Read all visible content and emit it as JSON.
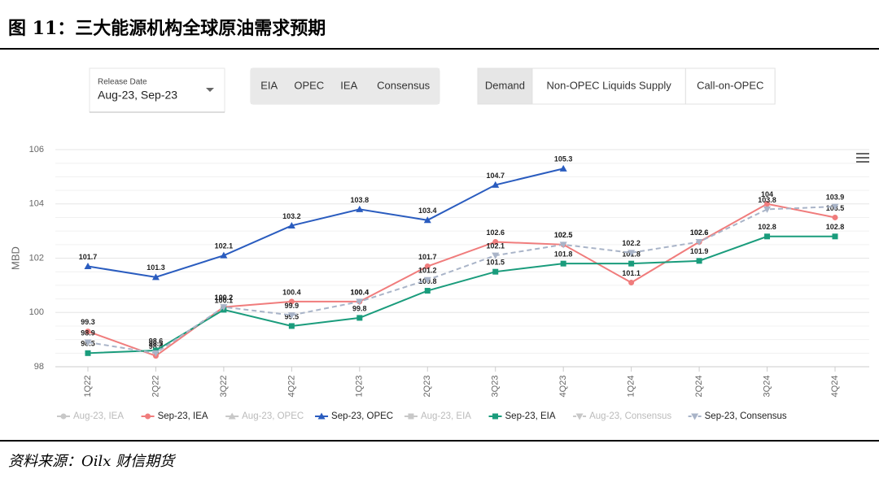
{
  "header": {
    "title": "图 11：三大能源机构全球原油需求预期"
  },
  "controls": {
    "release_date_label": "Release Date",
    "release_date_value": "Aug-23, Sep-23",
    "agencies": [
      "EIA",
      "OPEC",
      "IEA",
      "Consensus"
    ],
    "metrics": [
      "Demand",
      "Non-OPEC Liquids Supply",
      "Call-on-OPEC"
    ]
  },
  "chart_data": {
    "type": "line",
    "ylabel": "MBD",
    "categories": [
      "1Q22",
      "2Q22",
      "3Q22",
      "4Q22",
      "1Q23",
      "2Q23",
      "3Q23",
      "4Q23",
      "1Q24",
      "2Q24",
      "3Q24",
      "4Q24"
    ],
    "ylim": [
      98,
      106
    ],
    "yticks": [
      98,
      100,
      102,
      104,
      106
    ],
    "grid": true,
    "legend_inactive": [
      "Aug-23, IEA",
      "Aug-23, OPEC",
      "Aug-23, EIA",
      "Aug-23, Consensus"
    ],
    "inactive_color": "#c8c8c8",
    "series": [
      {
        "name": "Sep-23, IEA",
        "color": "#f07c7c",
        "marker": "circle",
        "dash": false,
        "values": [
          99.3,
          98.4,
          100.2,
          100.4,
          100.4,
          101.7,
          102.6,
          102.5,
          101.1,
          102.6,
          104.0,
          103.5
        ]
      },
      {
        "name": "Sep-23, OPEC",
        "color": "#2a5cbf",
        "marker": "triangle",
        "dash": false,
        "values": [
          101.7,
          101.3,
          102.1,
          103.2,
          103.8,
          103.4,
          104.7,
          105.3,
          null,
          null,
          null,
          null
        ]
      },
      {
        "name": "Sep-23, EIA",
        "color": "#1a9c7c",
        "marker": "square",
        "dash": false,
        "values": [
          98.5,
          98.6,
          100.1,
          99.5,
          99.8,
          100.8,
          101.5,
          101.8,
          101.8,
          101.9,
          102.8,
          102.8
        ]
      },
      {
        "name": "Sep-23, Consensus",
        "color": "#a9b4c8",
        "marker": "triangle-down",
        "dash": true,
        "values": [
          98.9,
          98.5,
          100.2,
          99.9,
          100.4,
          101.2,
          102.1,
          102.5,
          102.2,
          102.6,
          103.8,
          103.9
        ]
      }
    ]
  },
  "footer": {
    "source": "资料来源：Oilx 财信期货"
  }
}
